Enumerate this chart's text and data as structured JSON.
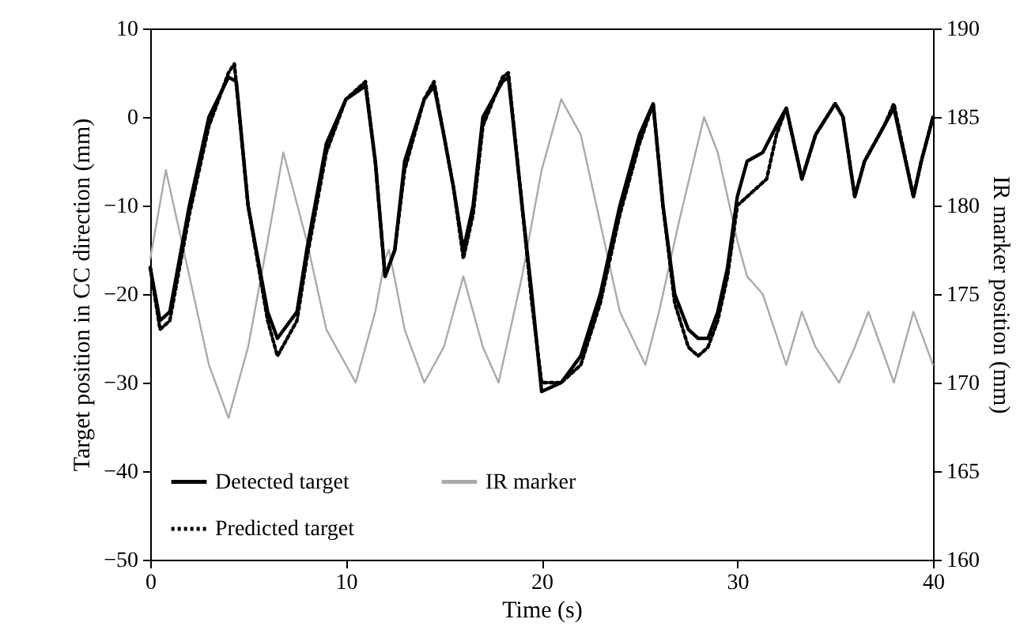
{
  "chart_data": {
    "type": "line",
    "xlabel": "Time (s)",
    "ylabel": "Target position in CC direction (mm)",
    "y2label": "IR marker position (mm)",
    "xlim": [
      0,
      40
    ],
    "xticks": [
      0,
      10,
      20,
      30,
      40
    ],
    "ylim": [
      -50,
      10
    ],
    "yticks": [
      -50,
      -40,
      -30,
      -20,
      -10,
      0,
      10
    ],
    "y2lim": [
      160,
      190
    ],
    "y2ticks": [
      160,
      165,
      170,
      175,
      180,
      185,
      190
    ],
    "grid": false,
    "legend": "bottom left",
    "marker": "none",
    "series": [
      {
        "name": "Detected target",
        "color": "#000000",
        "line_style": "solid",
        "x": [
          0,
          0.5,
          1,
          2,
          3,
          4,
          4.4,
          5,
          6,
          6.5,
          7.5,
          8,
          9,
          10,
          11,
          11.5,
          12,
          12.5,
          13,
          14,
          14.5,
          15,
          15.5,
          16,
          16.5,
          17,
          18,
          18.3,
          19,
          19.5,
          20,
          21,
          22,
          23,
          24,
          25,
          25.7,
          26.2,
          26.8,
          27.5,
          28,
          28.5,
          29,
          29.5,
          30,
          30.5,
          31.3,
          32,
          32.5,
          33.3,
          34,
          35,
          35.4,
          36,
          36.5,
          37.5,
          38,
          39,
          39.4,
          40
        ],
        "values": [
          -17,
          -23,
          -22,
          -10,
          0,
          4.5,
          4,
          -10,
          -22,
          -25,
          -22,
          -15,
          -3,
          2,
          3.5,
          -5,
          -18,
          -15,
          -5,
          2,
          3.5,
          -2,
          -8,
          -15,
          -10,
          0,
          4,
          4.5,
          -10,
          -20,
          -31,
          -30,
          -27,
          -20,
          -10,
          -2,
          1.5,
          -10,
          -20,
          -24,
          -25,
          -25,
          -22,
          -17,
          -9,
          -5,
          -4,
          -1,
          1,
          -7,
          -2,
          1.5,
          0,
          -9,
          -5,
          -1,
          1,
          -9,
          -5,
          0
        ]
      },
      {
        "name": "IR marker",
        "color": "#aaaaaa",
        "line_style": "solid",
        "axis": "y2",
        "x": [
          0,
          0.8,
          2,
          3,
          4,
          5,
          6,
          6.8,
          8,
          9,
          10.5,
          11.5,
          12,
          12.2,
          13,
          14,
          15,
          16,
          17,
          17.8,
          19,
          20,
          21,
          22,
          23,
          24,
          25.3,
          26,
          27,
          28.3,
          29,
          30,
          30.5,
          31.3,
          32.5,
          33.3,
          34,
          35.2,
          36,
          36.7,
          38,
          39,
          40
        ],
        "values": [
          177,
          182,
          176,
          171,
          168,
          172,
          178,
          183,
          178,
          173,
          170,
          174,
          177,
          177.5,
          173,
          170,
          172,
          176,
          172,
          170,
          176,
          182,
          186,
          184,
          179,
          174,
          171,
          174,
          179,
          185,
          183,
          178,
          176,
          175,
          171,
          174,
          172,
          170,
          172,
          174,
          170,
          174,
          171
        ]
      },
      {
        "name": "Predicted target",
        "color": "#000000",
        "line_style": "dotted",
        "x": [
          0,
          0.5,
          1,
          2,
          3,
          4,
          4.3,
          5,
          6,
          6.5,
          7.5,
          8,
          9,
          10,
          11,
          11.5,
          12,
          12.5,
          13,
          14,
          14.5,
          15,
          15.5,
          16,
          16.5,
          17,
          18,
          18.3,
          19,
          19.5,
          20,
          21,
          22,
          23,
          24,
          25,
          25.7,
          26.2,
          26.8,
          27.5,
          28,
          28.5,
          29,
          29.5,
          30,
          30.5,
          31.5,
          32,
          32.5,
          33.3,
          34,
          35,
          35.4,
          36,
          36.5,
          37.5,
          38,
          39,
          39.4,
          40
        ],
        "values": [
          -17,
          -24,
          -23,
          -11,
          -1,
          5,
          6,
          -10,
          -23,
          -27,
          -23,
          -16,
          -4,
          2,
          4,
          -5,
          -18,
          -15,
          -6,
          2,
          4,
          -2,
          -8,
          -16,
          -11,
          -1,
          4.5,
          5,
          -10,
          -21,
          -30,
          -30,
          -28,
          -21,
          -11,
          -3,
          1.5,
          -10,
          -21,
          -26,
          -27,
          -26,
          -23,
          -18,
          -10,
          -9,
          -7,
          -2,
          1,
          -7,
          -2,
          1.5,
          0,
          -9,
          -5,
          -1,
          1.5,
          -9,
          -5,
          0
        ]
      }
    ]
  }
}
